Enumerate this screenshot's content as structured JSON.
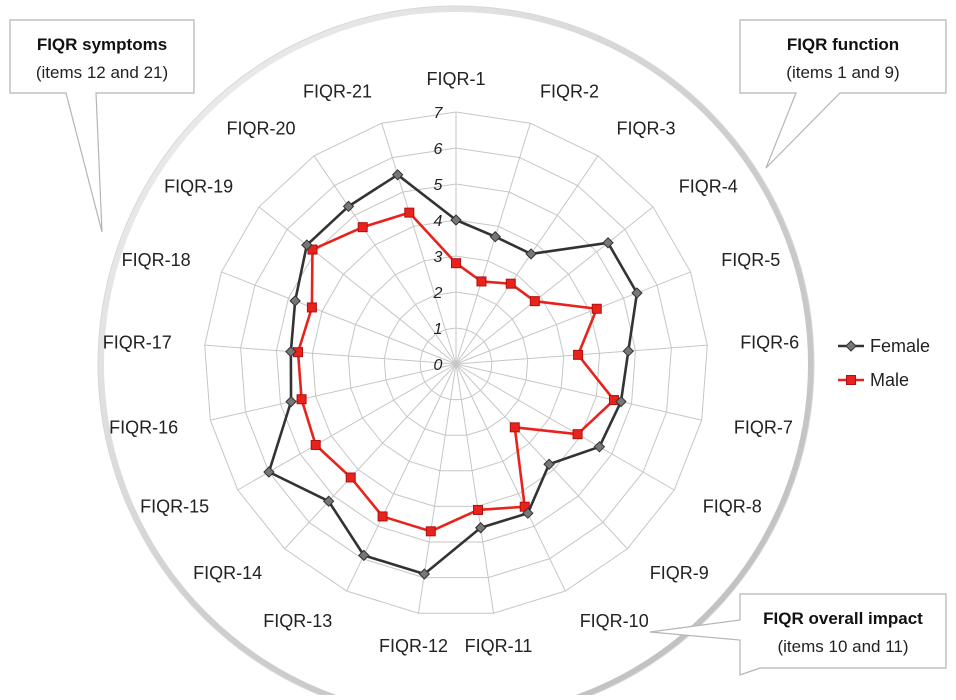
{
  "chart_data": {
    "type": "radar",
    "categories": [
      "FIQR-1",
      "FIQR-2",
      "FIQR-3",
      "FIQR-4",
      "FIQR-5",
      "FIQR-6",
      "FIQR-7",
      "FIQR-8",
      "FIQR-9",
      "FIQR-10",
      "FIQR-11",
      "FIQR-12",
      "FIQR-13",
      "FIQR-14",
      "FIQR-15",
      "FIQR-16",
      "FIQR-17",
      "FIQR-18",
      "FIQR-19",
      "FIQR-20",
      "FIQR-21"
    ],
    "ticks": [
      "0",
      "1",
      "2",
      "3",
      "4",
      "5",
      "6",
      "7"
    ],
    "rlim": [
      0,
      7
    ],
    "grid": true,
    "legend_position": "right",
    "series": [
      {
        "name": "Female",
        "color": "#333333",
        "marker": "diamond",
        "values": [
          4.0,
          3.7,
          3.7,
          5.4,
          5.4,
          4.8,
          4.7,
          4.6,
          3.8,
          4.6,
          4.6,
          5.9,
          5.9,
          5.2,
          6.0,
          4.7,
          4.6,
          4.8,
          5.3,
          5.3,
          5.5
        ]
      },
      {
        "name": "Male",
        "color": "#e8231b",
        "marker": "square",
        "values": [
          2.8,
          2.4,
          2.7,
          2.8,
          4.2,
          3.4,
          4.5,
          3.9,
          2.4,
          4.4,
          4.1,
          4.7,
          4.7,
          4.3,
          4.5,
          4.4,
          4.4,
          4.3,
          5.1,
          4.6,
          4.4
        ]
      }
    ]
  },
  "callouts": {
    "symptoms": {
      "title": "FIQR symptoms",
      "subtitle": "(items 12 and 21)"
    },
    "function": {
      "title": "FIQR function",
      "subtitle": "(items 1 and 9)"
    },
    "impact": {
      "title": "FIQR overall impact",
      "subtitle": "(items 10 and 11)"
    }
  }
}
